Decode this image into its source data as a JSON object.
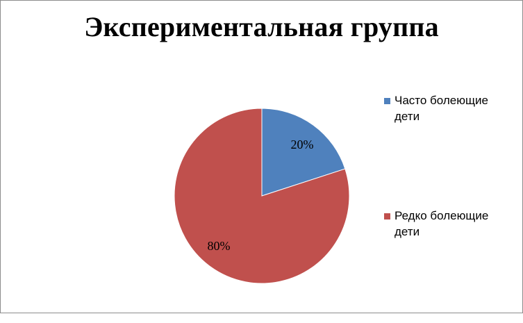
{
  "chart_data": {
    "type": "pie",
    "title": "Экспериментальная группа",
    "slices": [
      {
        "label": "Часто болеющие дети",
        "value": 20,
        "data_label": "20%",
        "color": "#4F81BD"
      },
      {
        "label": "Редко болеющие дети",
        "value": 80,
        "data_label": "80%",
        "color": "#C0504D"
      }
    ],
    "legend_position": "right"
  }
}
